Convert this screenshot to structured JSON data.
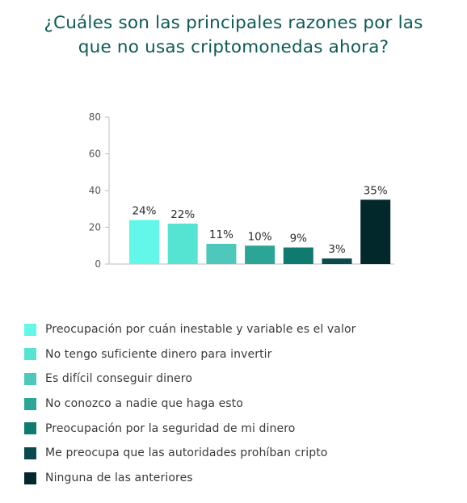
{
  "chart_data": {
    "type": "bar",
    "title_lines": [
      "¿Cuáles son las principales razones por las",
      "que no usas criptomonedas ahora?"
    ],
    "categories": [
      "Preocupación por cuán inestable y variable es el valor",
      "No tengo suficiente dinero para invertir",
      "Es difícil conseguir dinero",
      "No conozco a nadie que haga esto",
      "Preocupación por la seguridad de mi dinero",
      "Me preocupa que las autoridades prohíban cripto",
      "Ninguna de las anteriores"
    ],
    "values": [
      24,
      22,
      11,
      10,
      9,
      3,
      35
    ],
    "data_labels": [
      "24%",
      "22%",
      "11%",
      "10%",
      "9%",
      "3%",
      "35%"
    ],
    "colors": [
      "#63f7ea",
      "#55e3d2",
      "#4ec8bb",
      "#2aa596",
      "#0f7a6f",
      "#094a4c",
      "#03282c"
    ],
    "yticks": [
      "0",
      "20",
      "40",
      "60",
      "80"
    ],
    "ylim": [
      0,
      80
    ],
    "grid": false,
    "legend_position": "bottom"
  }
}
